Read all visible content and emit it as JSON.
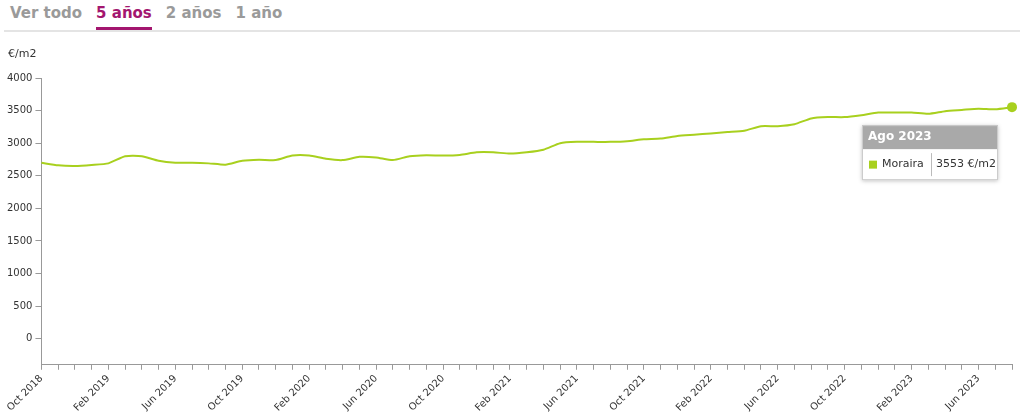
{
  "tabs": {
    "items": [
      "Ver todo",
      "5 años",
      "2 años",
      "1 año"
    ],
    "selected": "5 años"
  },
  "chart_data": {
    "type": "line",
    "y_label": "€/m2",
    "categories": [
      "Oct 2018",
      null,
      null,
      null,
      "Feb 2019",
      null,
      null,
      null,
      "Jun 2019",
      null,
      null,
      null,
      "Oct 2019",
      null,
      null,
      null,
      "Feb 2020",
      null,
      null,
      null,
      "Jun 2020",
      null,
      null,
      null,
      "Oct 2020",
      null,
      null,
      null,
      "Feb 2021",
      null,
      null,
      null,
      "Jun 2021",
      null,
      null,
      null,
      "Oct 2021",
      null,
      null,
      null,
      "Feb 2022",
      null,
      null,
      null,
      "Jun 2022",
      null,
      null,
      null,
      "Oct 2022",
      null,
      null,
      null,
      "Feb 2023",
      null,
      null,
      null,
      "Jun 2023",
      null,
      null
    ],
    "series": [
      {
        "name": "Moraira",
        "color": "#a8d01e",
        "values": [
          2700,
          2660,
          2650,
          2665,
          2690,
          2800,
          2800,
          2730,
          2700,
          2700,
          2690,
          2670,
          2730,
          2745,
          2740,
          2810,
          2810,
          2760,
          2740,
          2790,
          2780,
          2740,
          2800,
          2815,
          2810,
          2820,
          2860,
          2860,
          2840,
          2860,
          2900,
          3000,
          3020,
          3020,
          3020,
          3030,
          3060,
          3070,
          3110,
          3130,
          3150,
          3170,
          3190,
          3260,
          3260,
          3290,
          3380,
          3400,
          3400,
          3430,
          3470,
          3470,
          3470,
          3450,
          3490,
          3510,
          3530,
          3520,
          3553
        ]
      }
    ],
    "ylim": [
      -400,
      4000
    ],
    "yticks": [
      0,
      500,
      1000,
      1500,
      2000,
      2500,
      3000,
      3500,
      4000
    ],
    "grid": false,
    "annotations": [
      {
        "title": "Ago 2023",
        "value": 3553,
        "value_label": "3553 €/m2"
      }
    ]
  }
}
